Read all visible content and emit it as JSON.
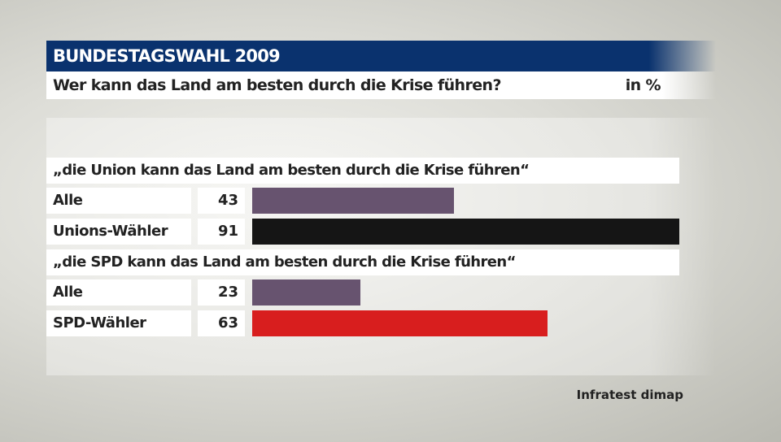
{
  "header": {
    "title": "BUNDESTAGSWAHL 2009",
    "question": "Wer kann das Land am besten durch die Krise führen?",
    "unit": "in %"
  },
  "chart_data": {
    "type": "bar",
    "orientation": "horizontal",
    "xlim": [
      0,
      91
    ],
    "groups": [
      {
        "label": "„die Union kann das Land am besten durch die Krise führen“",
        "rows": [
          {
            "label": "Alle",
            "value": 43,
            "color": "#67536f"
          },
          {
            "label": "Unions-Wähler",
            "value": 91,
            "color": "#151515"
          }
        ]
      },
      {
        "label": "„die SPD kann das Land am besten durch die Krise führen“",
        "rows": [
          {
            "label": "Alle",
            "value": 23,
            "color": "#67536f"
          },
          {
            "label": "SPD-Wähler",
            "value": 63,
            "color": "#d81e1e"
          }
        ]
      }
    ]
  },
  "source": "Infratest dimap"
}
